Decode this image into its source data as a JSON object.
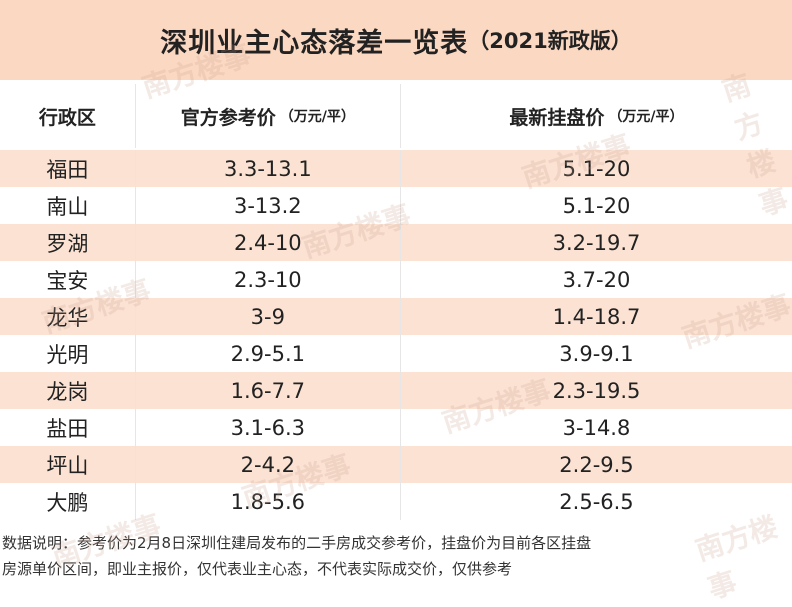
{
  "header": {
    "title": "深圳业主心态落差一览表",
    "edition": "（2021新政版）"
  },
  "table": {
    "header": [
      {
        "label": "行政区"
      },
      {
        "label": "官方参考价",
        "unit": "（万元/平）"
      },
      {
        "label": "最新挂盘价",
        "unit": "（万元/平）"
      }
    ],
    "rows": [
      [
        "福田",
        "3.3-13.1",
        "5.1-20"
      ],
      [
        "南山",
        "3-13.2",
        "5.1-20"
      ],
      [
        "罗湖",
        "2.4-10",
        "3.2-19.7"
      ],
      [
        "宝安",
        "2.3-10",
        "3.7-20"
      ],
      [
        "龙华",
        "3-9",
        "1.4-18.7"
      ],
      [
        "光明",
        "2.9-5.1",
        "3.9-9.1"
      ],
      [
        "龙岗",
        "1.6-7.7",
        "2.3-19.5"
      ],
      [
        "盐田",
        "3.1-6.3",
        "3-14.8"
      ],
      [
        "坪山",
        "2-4.2",
        "2.2-9.5"
      ],
      [
        "大鹏",
        "1.8-5.6",
        "2.5-6.5"
      ]
    ]
  },
  "footnote": [
    "数据说明：参考价为2月8日深圳住建局发布的二手房成交参考价，挂盘价为目前各区挂盘",
    "房源单价区间，即业主报价，仅代表业主心态，不代表实际成交价，仅供参考"
  ],
  "watermark": "南方楼事"
}
